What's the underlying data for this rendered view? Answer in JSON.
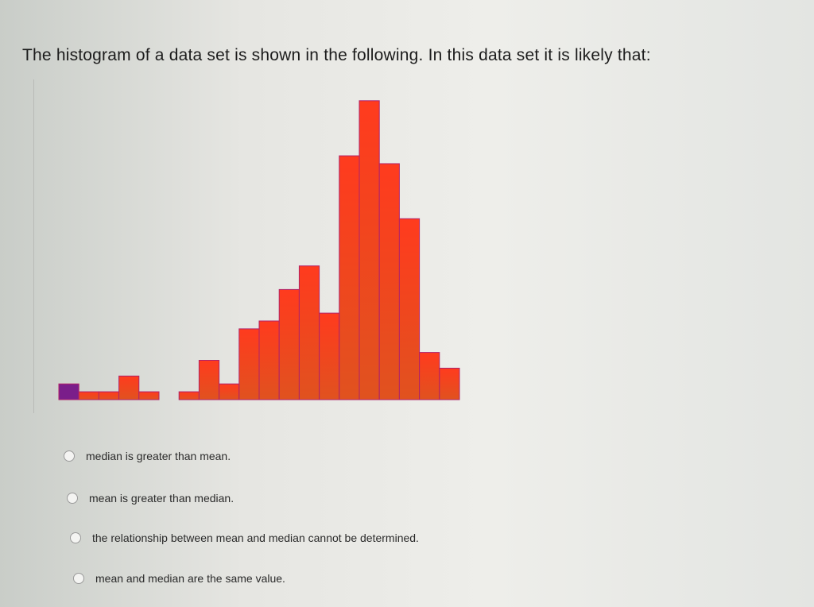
{
  "question": {
    "text": "The histogram of a data set is shown in the following. In this data set it is likely that:"
  },
  "chart_data": {
    "type": "bar",
    "title": "",
    "xlabel": "",
    "ylabel": "",
    "values": [
      2,
      1,
      1,
      3,
      1,
      0,
      1,
      5,
      2,
      9,
      10,
      14,
      17,
      11,
      31,
      38,
      30,
      23,
      6,
      4
    ],
    "grid": false,
    "axes_labels_shown": false,
    "colors": {
      "first_bin": "#7a1e8a",
      "low": "#e0521f",
      "high": "#ff3b1e",
      "edge": "#b0226a"
    }
  },
  "options": [
    {
      "label": "median is greater than mean.",
      "selected": false
    },
    {
      "label": "mean is greater than median.",
      "selected": false
    },
    {
      "label": "the relationship between mean and median cannot be determined.",
      "selected": false
    },
    {
      "label": "mean and median are the same value.",
      "selected": false
    }
  ]
}
